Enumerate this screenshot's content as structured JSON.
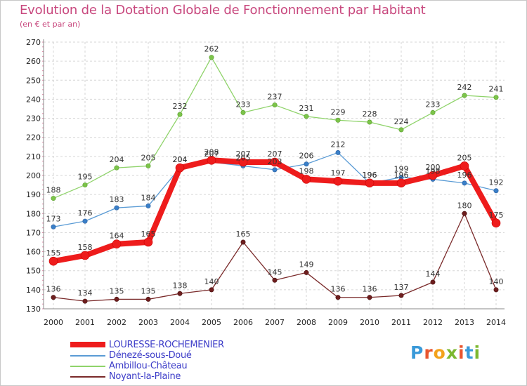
{
  "header": {
    "title": "Evolution de la Dotation Globale de Fonctionnement par Habitant",
    "subtitle": "(en € et par an)"
  },
  "logo": {
    "text": "Proxiti",
    "colors": [
      "#3a9ad9",
      "#e8552e",
      "#f3a21b",
      "#7cb82f",
      "#e8552e",
      "#3a9ad9",
      "#7cb82f"
    ]
  },
  "chart_data": {
    "type": "line",
    "title": "Evolution de la Dotation Globale de Fonctionnement par Habitant",
    "subtitle": "(en € et par an)",
    "x": [
      "2000",
      "2001",
      "2002",
      "2003",
      "2004",
      "2005",
      "2006",
      "2007",
      "2008",
      "2009",
      "2010",
      "2011",
      "2012",
      "2013",
      "2014"
    ],
    "ylim": [
      130,
      270
    ],
    "yticks": [
      130,
      140,
      150,
      160,
      170,
      180,
      190,
      200,
      210,
      220,
      230,
      240,
      250,
      260,
      270
    ],
    "grid": true,
    "legend_position": "bottom-left",
    "series": [
      {
        "name": "Noyant-la-Plaine",
        "color": "#7a2a2a",
        "values": [
          136,
          134,
          135,
          135,
          138,
          140,
          165,
          145,
          149,
          136,
          136,
          137,
          144,
          180,
          140
        ]
      },
      {
        "name": "Ambillou-Château",
        "color": "#8fd36a",
        "values": [
          188,
          195,
          204,
          205,
          232,
          262,
          233,
          237,
          231,
          229,
          228,
          224,
          233,
          242,
          241
        ]
      },
      {
        "name": "Dénezé-sous-Doué",
        "color": "#5a9bd5",
        "values": [
          173,
          176,
          183,
          184,
          204,
          207,
          205,
          203,
          206,
          212,
          196,
          199,
          198,
          196,
          192
        ]
      },
      {
        "name": "LOURESSE-ROCHEMENIER",
        "color": "#ee1c1c",
        "values": [
          155,
          158,
          164,
          165,
          204,
          208,
          207,
          207,
          198,
          197,
          196,
          196,
          200,
          205,
          175
        ]
      }
    ]
  }
}
